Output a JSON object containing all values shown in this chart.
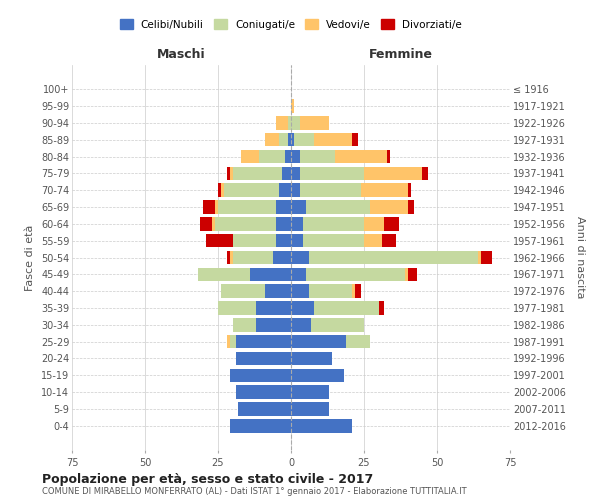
{
  "age_groups": [
    "0-4",
    "5-9",
    "10-14",
    "15-19",
    "20-24",
    "25-29",
    "30-34",
    "35-39",
    "40-44",
    "45-49",
    "50-54",
    "55-59",
    "60-64",
    "65-69",
    "70-74",
    "75-79",
    "80-84",
    "85-89",
    "90-94",
    "95-99",
    "100+"
  ],
  "birth_years": [
    "2012-2016",
    "2007-2011",
    "2002-2006",
    "1997-2001",
    "1992-1996",
    "1987-1991",
    "1982-1986",
    "1977-1981",
    "1972-1976",
    "1967-1971",
    "1962-1966",
    "1957-1961",
    "1952-1956",
    "1947-1951",
    "1942-1946",
    "1937-1941",
    "1932-1936",
    "1927-1931",
    "1922-1926",
    "1917-1921",
    "≤ 1916"
  ],
  "colors": {
    "celibi": "#4472c4",
    "coniugati": "#c5d9a0",
    "vedovi": "#ffc469",
    "divorziati": "#cc0000"
  },
  "maschi": {
    "celibi": [
      21,
      18,
      19,
      21,
      19,
      19,
      12,
      12,
      9,
      14,
      6,
      5,
      5,
      5,
      4,
      3,
      2,
      1,
      0,
      0,
      0
    ],
    "coniugati": [
      0,
      0,
      0,
      0,
      0,
      2,
      8,
      13,
      15,
      18,
      14,
      15,
      21,
      20,
      19,
      17,
      9,
      3,
      1,
      0,
      0
    ],
    "vedovi": [
      0,
      0,
      0,
      0,
      0,
      1,
      0,
      0,
      0,
      0,
      1,
      0,
      1,
      1,
      1,
      1,
      6,
      5,
      4,
      0,
      0
    ],
    "divorziati": [
      0,
      0,
      0,
      0,
      0,
      0,
      0,
      0,
      0,
      0,
      1,
      9,
      4,
      4,
      1,
      1,
      0,
      0,
      0,
      0,
      0
    ]
  },
  "femmine": {
    "celibi": [
      21,
      13,
      13,
      18,
      14,
      19,
      7,
      8,
      6,
      5,
      6,
      4,
      4,
      5,
      3,
      3,
      3,
      1,
      0,
      0,
      0
    ],
    "coniugati": [
      0,
      0,
      0,
      0,
      0,
      8,
      18,
      22,
      15,
      34,
      58,
      21,
      21,
      22,
      21,
      22,
      12,
      7,
      3,
      0,
      0
    ],
    "vedovi": [
      0,
      0,
      0,
      0,
      0,
      0,
      0,
      0,
      1,
      1,
      1,
      6,
      7,
      13,
      16,
      20,
      18,
      13,
      10,
      1,
      0
    ],
    "divorziati": [
      0,
      0,
      0,
      0,
      0,
      0,
      0,
      2,
      2,
      3,
      4,
      5,
      5,
      2,
      1,
      2,
      1,
      2,
      0,
      0,
      0
    ]
  },
  "title": "Popolazione per età, sesso e stato civile - 2017",
  "subtitle": "COMUNE DI MIRABELLO MONFERRATO (AL) - Dati ISTAT 1° gennaio 2017 - Elaborazione TUTTITALIA.IT",
  "xlabel_left": "Maschi",
  "xlabel_right": "Femmine",
  "ylabel_left": "Fasce di età",
  "ylabel_right": "Anni di nascita",
  "xlim": 75,
  "legend_labels": [
    "Celibi/Nubili",
    "Coniugati/e",
    "Vedovi/e",
    "Divorziati/e"
  ],
  "background_color": "#ffffff",
  "grid_color": "#cccccc",
  "bar_height": 0.8
}
